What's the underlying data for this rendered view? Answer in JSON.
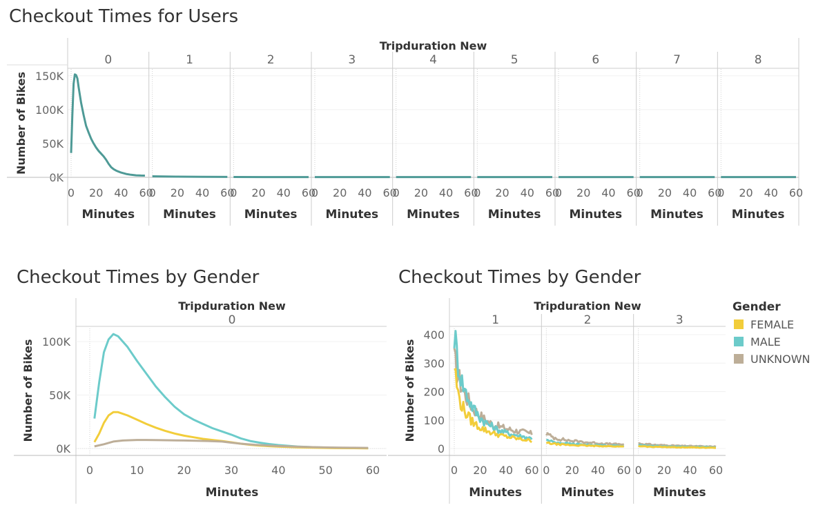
{
  "chart_data": [
    {
      "type": "line",
      "title": "Checkout Times for Users",
      "column_header": "Tripduration New",
      "panels": [
        "0",
        "1",
        "2",
        "3",
        "4",
        "5",
        "6",
        "7",
        "8"
      ],
      "xlabel": "Minutes",
      "ylabel": "Number of Bikes",
      "xlim": [
        0,
        60
      ],
      "xticks": [
        "0",
        "20",
        "40",
        "60"
      ],
      "ylim": [
        0,
        160000
      ],
      "yticks": [
        0,
        50000,
        100000,
        150000
      ],
      "ytick_labels": [
        "0K",
        "50K",
        "100K",
        "150K"
      ],
      "color": "#4e9a96",
      "series_by_panel": [
        [
          [
            0,
            36000
          ],
          [
            1,
            92000
          ],
          [
            2,
            138000
          ],
          [
            3,
            152000
          ],
          [
            4,
            151000
          ],
          [
            5,
            146000
          ],
          [
            6,
            133000
          ],
          [
            8,
            110000
          ],
          [
            10,
            92000
          ],
          [
            12,
            76000
          ],
          [
            14,
            66000
          ],
          [
            16,
            57000
          ],
          [
            18,
            50000
          ],
          [
            20,
            44000
          ],
          [
            22,
            39000
          ],
          [
            24,
            35000
          ],
          [
            26,
            31000
          ],
          [
            28,
            26000
          ],
          [
            30,
            20000
          ],
          [
            32,
            15000
          ],
          [
            34,
            12000
          ],
          [
            36,
            10000
          ],
          [
            38,
            8500
          ],
          [
            40,
            7000
          ],
          [
            44,
            5000
          ],
          [
            48,
            3800
          ],
          [
            52,
            3000
          ],
          [
            56,
            2700
          ],
          [
            59,
            2500
          ]
        ],
        [
          [
            0,
            1500
          ],
          [
            20,
            1000
          ],
          [
            40,
            700
          ],
          [
            60,
            600
          ]
        ],
        [
          [
            0,
            500
          ],
          [
            30,
            450
          ],
          [
            60,
            400
          ]
        ],
        [
          [
            0,
            400
          ],
          [
            30,
            400
          ],
          [
            60,
            400
          ]
        ],
        [
          [
            0,
            400
          ],
          [
            30,
            400
          ],
          [
            60,
            400
          ]
        ],
        [
          [
            0,
            400
          ],
          [
            30,
            400
          ],
          [
            60,
            400
          ]
        ],
        [
          [
            0,
            400
          ],
          [
            30,
            400
          ],
          [
            60,
            400
          ]
        ],
        [
          [
            0,
            400
          ],
          [
            30,
            400
          ],
          [
            60,
            400
          ]
        ],
        [
          [
            0,
            400
          ],
          [
            30,
            400
          ],
          [
            60,
            400
          ]
        ]
      ]
    },
    {
      "type": "line",
      "title": "Checkout Times by Gender",
      "column_header": "Tripduration New",
      "panels": [
        "0"
      ],
      "xlabel": "Minutes",
      "ylabel": "Number of Bikes",
      "xlim": [
        -3,
        61
      ],
      "xticks": [
        0,
        10,
        20,
        30,
        40,
        50,
        60
      ],
      "ylim": [
        -4000,
        110000
      ],
      "yticks": [
        0,
        50000,
        100000
      ],
      "ytick_labels": [
        "0K",
        "50K",
        "100K"
      ],
      "series": [
        {
          "name": "MALE",
          "color": "#6ccbca",
          "points": [
            [
              1,
              28000
            ],
            [
              2,
              62000
            ],
            [
              3,
              90000
            ],
            [
              4,
              102000
            ],
            [
              5,
              107000
            ],
            [
              6,
              105000
            ],
            [
              8,
              95000
            ],
            [
              10,
              82000
            ],
            [
              12,
              70000
            ],
            [
              14,
              58000
            ],
            [
              16,
              48000
            ],
            [
              18,
              39000
            ],
            [
              20,
              32000
            ],
            [
              22,
              27000
            ],
            [
              24,
              23000
            ],
            [
              26,
              19000
            ],
            [
              28,
              16000
            ],
            [
              30,
              13000
            ],
            [
              32,
              9500
            ],
            [
              34,
              7000
            ],
            [
              36,
              5500
            ],
            [
              38,
              4200
            ],
            [
              40,
              3200
            ],
            [
              44,
              1900
            ],
            [
              48,
              1100
            ],
            [
              52,
              700
            ],
            [
              56,
              400
            ],
            [
              59,
              300
            ]
          ]
        },
        {
          "name": "FEMALE",
          "color": "#f2cd3a",
          "points": [
            [
              1,
              6000
            ],
            [
              2,
              14000
            ],
            [
              3,
              24000
            ],
            [
              4,
              31000
            ],
            [
              5,
              34000
            ],
            [
              6,
              34000
            ],
            [
              8,
              31000
            ],
            [
              10,
              27000
            ],
            [
              12,
              23000
            ],
            [
              14,
              19500
            ],
            [
              16,
              16500
            ],
            [
              18,
              14000
            ],
            [
              20,
              12000
            ],
            [
              22,
              10500
            ],
            [
              24,
              9000
            ],
            [
              26,
              8000
            ],
            [
              28,
              7000
            ],
            [
              30,
              5800
            ],
            [
              32,
              4500
            ],
            [
              34,
              3500
            ],
            [
              36,
              2800
            ],
            [
              38,
              2200
            ],
            [
              40,
              1800
            ],
            [
              44,
              1100
            ],
            [
              48,
              700
            ],
            [
              52,
              400
            ],
            [
              56,
              300
            ],
            [
              59,
              200
            ]
          ]
        },
        {
          "name": "UNKNOWN",
          "color": "#bdae98",
          "points": [
            [
              1,
              2000
            ],
            [
              3,
              4000
            ],
            [
              5,
              6500
            ],
            [
              7,
              7500
            ],
            [
              10,
              8000
            ],
            [
              12,
              8000
            ],
            [
              15,
              7800
            ],
            [
              20,
              7500
            ],
            [
              25,
              7000
            ],
            [
              28,
              6500
            ],
            [
              30,
              5500
            ],
            [
              32,
              4500
            ],
            [
              35,
              3500
            ],
            [
              38,
              2800
            ],
            [
              40,
              2300
            ],
            [
              44,
              1700
            ],
            [
              48,
              1200
            ],
            [
              52,
              900
            ],
            [
              56,
              700
            ],
            [
              59,
              600
            ]
          ]
        }
      ]
    },
    {
      "type": "line",
      "title": "Checkout Times by Gender",
      "column_header": "Tripduration New",
      "panels": [
        "1",
        "2",
        "3"
      ],
      "xlabel": "Minutes",
      "ylabel": "Number of Bikes",
      "xlim": [
        0,
        60
      ],
      "xticks": [
        "0",
        "20",
        "40",
        "60"
      ],
      "ylim": [
        -20,
        420
      ],
      "yticks": [
        0,
        100,
        200,
        300,
        400
      ],
      "ytick_labels": [
        "0",
        "100",
        "200",
        "300",
        "400"
      ],
      "legend": {
        "title": "Gender",
        "position": "right",
        "entries": [
          {
            "label": "FEMALE",
            "color": "#f2cd3a"
          },
          {
            "label": "MALE",
            "color": "#6ccbca"
          },
          {
            "label": "UNKNOWN",
            "color": "#bdae98"
          }
        ]
      },
      "series": [
        {
          "name": "UNKNOWN",
          "color": "#bdae98",
          "panel_levels": [
            [
              310,
              255,
              215,
              185,
              160,
              140,
              125,
              112,
              100,
              92,
              85,
              80,
              75,
              72,
              68,
              65,
              62,
              60,
              58,
              55,
              52
            ],
            [
              52,
              44,
              38,
              35,
              32,
              30,
              28,
              26,
              25,
              24,
              22,
              21,
              20,
              19,
              18,
              17,
              16,
              16,
              15,
              15,
              14
            ],
            [
              18,
              16,
              15,
              14,
              13,
              12,
              12,
              11,
              11,
              10,
              10,
              9,
              9,
              9,
              8,
              8,
              8,
              7,
              7,
              7,
              7
            ]
          ]
        },
        {
          "name": "MALE",
          "color": "#6ccbca",
          "panel_levels": [
            [
              405,
              300,
              235,
              195,
              165,
              140,
              120,
              105,
              93,
              83,
              75,
              68,
              62,
              57,
              53,
              50,
              47,
              44,
              41,
              38,
              36
            ],
            [
              30,
              26,
              23,
              21,
              19,
              18,
              17,
              16,
              15,
              14,
              13,
              13,
              12,
              12,
              11,
              11,
              10,
              10,
              10,
              9,
              9
            ],
            [
              12,
              11,
              10,
              9,
              9,
              8,
              8,
              7,
              7,
              7,
              6,
              6,
              6,
              6,
              5,
              5,
              5,
              5,
              5,
              4,
              4
            ]
          ]
        },
        {
          "name": "FEMALE",
          "color": "#f2cd3a",
          "panel_levels": [
            [
              290,
              190,
              150,
              125,
              105,
              90,
              80,
              72,
              65,
              59,
              54,
              50,
              46,
              43,
              40,
              38,
              35,
              33,
              31,
              29,
              27
            ],
            [
              20,
              18,
              16,
              15,
              14,
              13,
              12,
              12,
              11,
              11,
              10,
              10,
              9,
              9,
              9,
              8,
              8,
              8,
              7,
              7,
              7
            ],
            [
              8,
              7,
              7,
              6,
              6,
              6,
              5,
              5,
              5,
              5,
              4,
              4,
              4,
              4,
              4,
              3,
              3,
              3,
              3,
              3,
              3
            ]
          ]
        }
      ]
    }
  ]
}
